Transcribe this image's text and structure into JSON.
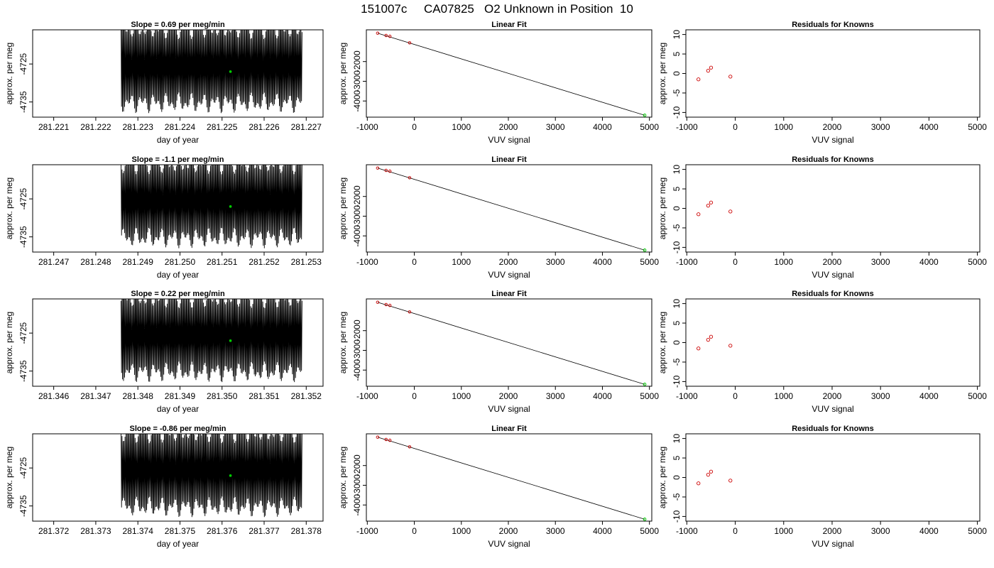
{
  "page_title": "151007c     CA07825   O2 Unknown in Position  10",
  "colors": {
    "trace": "#000000",
    "known_points": "#cc0000",
    "unknown_point": "#00cc00",
    "axes": "#000000",
    "background": "#ffffff"
  },
  "chart_data": [
    {
      "type": "line",
      "title": "Slope =  0.69  per meg/min",
      "xlabel": "day of year",
      "ylabel": "approx. per meg",
      "x_ticks": [
        "281.221",
        "281.222",
        "281.223",
        "281.224",
        "281.225",
        "281.226",
        "281.227"
      ],
      "y_ticks": [
        "-4725",
        "-4735"
      ],
      "xlim": [
        281.2205,
        281.2274
      ],
      "ylim": [
        -4739,
        -4716
      ],
      "x_tick_values": [
        281.221,
        281.222,
        281.223,
        281.224,
        281.225,
        281.226,
        281.227
      ],
      "y_tick_values": [
        -4725,
        -4735
      ],
      "trace_x_range": [
        281.2226,
        281.2269
      ],
      "trace_y_range": [
        -4738,
        -4713
      ],
      "highlight_point": {
        "x": 281.2252,
        "y": -4727
      }
    },
    {
      "type": "scatter",
      "title": "Linear Fit",
      "xlabel": "VUV signal",
      "ylabel": "approx. per meg",
      "x_ticks": [
        "-1000",
        "0",
        "1000",
        "2000",
        "3000",
        "4000",
        "5000"
      ],
      "y_ticks": [
        "-2000",
        "-3000",
        "-4000"
      ],
      "xlim": [
        -1020,
        5050
      ],
      "ylim": [
        -4820,
        -390
      ],
      "x_tick_values": [
        -1000,
        0,
        1000,
        2000,
        3000,
        4000,
        5000
      ],
      "y_tick_values": [
        -2000,
        -3000,
        -4000
      ],
      "fit_line": {
        "x": [
          -780,
          4900
        ],
        "y": [
          -560,
          -4725
        ]
      },
      "known_points": {
        "x": [
          -780,
          -600,
          -520,
          -100
        ],
        "y": [
          -560,
          -680,
          -720,
          -1050
        ]
      },
      "unknown_point": {
        "x": 4900,
        "y": -4725
      }
    },
    {
      "type": "scatter",
      "title": "Residuals for Knowns",
      "xlabel": "VUV signal",
      "ylabel": "approx. per meg",
      "x_ticks": [
        "-1000",
        "0",
        "1000",
        "2000",
        "3000",
        "4000",
        "5000"
      ],
      "y_ticks": [
        "10",
        "5",
        "0",
        "-5",
        "-10"
      ],
      "xlim": [
        -1020,
        5050
      ],
      "ylim": [
        -11.2,
        11.2
      ],
      "x_tick_values": [
        -1000,
        0,
        1000,
        2000,
        3000,
        4000,
        5000
      ],
      "y_tick_values": [
        10,
        5,
        0,
        -5,
        -10
      ],
      "points": {
        "x": [
          -760,
          -560,
          -500,
          -100
        ],
        "y": [
          -1.5,
          0.7,
          1.5,
          -0.8
        ]
      }
    },
    {
      "type": "line",
      "title": "Slope =  -1.1  per meg/min",
      "xlabel": "day of year",
      "ylabel": "approx. per meg",
      "x_ticks": [
        "281.247",
        "281.248",
        "281.249",
        "281.250",
        "281.251",
        "281.252",
        "281.253"
      ],
      "y_ticks": [
        "-4725",
        "-4735"
      ],
      "xlim": [
        281.2465,
        281.2534
      ],
      "ylim": [
        -4739,
        -4716
      ],
      "x_tick_values": [
        281.247,
        281.248,
        281.249,
        281.25,
        281.251,
        281.252,
        281.253
      ],
      "y_tick_values": [
        -4725,
        -4735
      ],
      "trace_x_range": [
        281.2486,
        281.2529
      ],
      "trace_y_range": [
        -4738,
        -4713
      ],
      "highlight_point": {
        "x": 281.2512,
        "y": -4727
      }
    },
    {
      "type": "scatter",
      "title": "Linear Fit",
      "xlabel": "VUV signal",
      "ylabel": "approx. per meg",
      "x_ticks": [
        "-1000",
        "0",
        "1000",
        "2000",
        "3000",
        "4000",
        "5000"
      ],
      "y_ticks": [
        "-2000",
        "-3000",
        "-4000"
      ],
      "xlim": [
        -1020,
        5050
      ],
      "ylim": [
        -4820,
        -390
      ],
      "x_tick_values": [
        -1000,
        0,
        1000,
        2000,
        3000,
        4000,
        5000
      ],
      "y_tick_values": [
        -2000,
        -3000,
        -4000
      ],
      "fit_line": {
        "x": [
          -780,
          4900
        ],
        "y": [
          -560,
          -4725
        ]
      },
      "known_points": {
        "x": [
          -780,
          -600,
          -520,
          -100
        ],
        "y": [
          -560,
          -680,
          -720,
          -1050
        ]
      },
      "unknown_point": {
        "x": 4900,
        "y": -4725
      }
    },
    {
      "type": "scatter",
      "title": "Residuals for Knowns",
      "xlabel": "VUV signal",
      "ylabel": "approx. per meg",
      "x_ticks": [
        "-1000",
        "0",
        "1000",
        "2000",
        "3000",
        "4000",
        "5000"
      ],
      "y_ticks": [
        "10",
        "5",
        "0",
        "-5",
        "-10"
      ],
      "xlim": [
        -1020,
        5050
      ],
      "ylim": [
        -11.2,
        11.2
      ],
      "x_tick_values": [
        -1000,
        0,
        1000,
        2000,
        3000,
        4000,
        5000
      ],
      "y_tick_values": [
        10,
        5,
        0,
        -5,
        -10
      ],
      "points": {
        "x": [
          -760,
          -560,
          -500,
          -100
        ],
        "y": [
          -1.5,
          0.7,
          1.5,
          -0.8
        ]
      }
    },
    {
      "type": "line",
      "title": "Slope =  0.22  per meg/min",
      "xlabel": "day of year",
      "ylabel": "approx. per meg",
      "x_ticks": [
        "281.346",
        "281.347",
        "281.348",
        "281.349",
        "281.350",
        "281.351",
        "281.352"
      ],
      "y_ticks": [
        "-4725",
        "-4735"
      ],
      "xlim": [
        281.3455,
        281.3524
      ],
      "ylim": [
        -4739,
        -4716
      ],
      "x_tick_values": [
        281.346,
        281.347,
        281.348,
        281.349,
        281.35,
        281.351,
        281.352
      ],
      "y_tick_values": [
        -4725,
        -4735
      ],
      "trace_x_range": [
        281.3476,
        281.3519
      ],
      "trace_y_range": [
        -4738,
        -4713
      ],
      "highlight_point": {
        "x": 281.3502,
        "y": -4727
      }
    },
    {
      "type": "scatter",
      "title": "Linear Fit",
      "xlabel": "VUV signal",
      "ylabel": "approx. per meg",
      "x_ticks": [
        "-1000",
        "0",
        "1000",
        "2000",
        "3000",
        "4000",
        "5000"
      ],
      "y_ticks": [
        "-2000",
        "-3000",
        "-4000"
      ],
      "xlim": [
        -1020,
        5050
      ],
      "ylim": [
        -4820,
        -390
      ],
      "x_tick_values": [
        -1000,
        0,
        1000,
        2000,
        3000,
        4000,
        5000
      ],
      "y_tick_values": [
        -2000,
        -3000,
        -4000
      ],
      "fit_line": {
        "x": [
          -780,
          4900
        ],
        "y": [
          -560,
          -4725
        ]
      },
      "known_points": {
        "x": [
          -780,
          -600,
          -520,
          -100
        ],
        "y": [
          -560,
          -680,
          -720,
          -1050
        ]
      },
      "unknown_point": {
        "x": 4900,
        "y": -4725
      }
    },
    {
      "type": "scatter",
      "title": "Residuals for Knowns",
      "xlabel": "VUV signal",
      "ylabel": "approx. per meg",
      "x_ticks": [
        "-1000",
        "0",
        "1000",
        "2000",
        "3000",
        "4000",
        "5000"
      ],
      "y_ticks": [
        "10",
        "5",
        "0",
        "-5",
        "-10"
      ],
      "xlim": [
        -1020,
        5050
      ],
      "ylim": [
        -11.2,
        11.2
      ],
      "x_tick_values": [
        -1000,
        0,
        1000,
        2000,
        3000,
        4000,
        5000
      ],
      "y_tick_values": [
        10,
        5,
        0,
        -5,
        -10
      ],
      "points": {
        "x": [
          -760,
          -560,
          -500,
          -100
        ],
        "y": [
          -1.5,
          0.7,
          1.5,
          -0.8
        ]
      }
    },
    {
      "type": "line",
      "title": "Slope =  -0.86  per meg/min",
      "xlabel": "day of year",
      "ylabel": "approx. per meg",
      "x_ticks": [
        "281.372",
        "281.373",
        "281.374",
        "281.375",
        "281.376",
        "281.377",
        "281.378"
      ],
      "y_ticks": [
        "-4725",
        "-4735"
      ],
      "xlim": [
        281.3715,
        281.3784
      ],
      "ylim": [
        -4739,
        -4716
      ],
      "x_tick_values": [
        281.372,
        281.373,
        281.374,
        281.375,
        281.376,
        281.377,
        281.378
      ],
      "y_tick_values": [
        -4725,
        -4735
      ],
      "trace_x_range": [
        281.3736,
        281.3779
      ],
      "trace_y_range": [
        -4738,
        -4713
      ],
      "highlight_point": {
        "x": 281.3762,
        "y": -4727
      }
    },
    {
      "type": "scatter",
      "title": "Linear Fit",
      "xlabel": "VUV signal",
      "ylabel": "approx. per meg",
      "x_ticks": [
        "-1000",
        "0",
        "1000",
        "2000",
        "3000",
        "4000",
        "5000"
      ],
      "y_ticks": [
        "-2000",
        "-3000",
        "-4000"
      ],
      "xlim": [
        -1020,
        5050
      ],
      "ylim": [
        -4820,
        -390
      ],
      "x_tick_values": [
        -1000,
        0,
        1000,
        2000,
        3000,
        4000,
        5000
      ],
      "y_tick_values": [
        -2000,
        -3000,
        -4000
      ],
      "fit_line": {
        "x": [
          -780,
          4900
        ],
        "y": [
          -560,
          -4725
        ]
      },
      "known_points": {
        "x": [
          -780,
          -600,
          -520,
          -100
        ],
        "y": [
          -560,
          -680,
          -720,
          -1050
        ]
      },
      "unknown_point": {
        "x": 4900,
        "y": -4725
      }
    },
    {
      "type": "scatter",
      "title": "Residuals for Knowns",
      "xlabel": "VUV signal",
      "ylabel": "approx. per meg",
      "x_ticks": [
        "-1000",
        "0",
        "1000",
        "2000",
        "3000",
        "4000",
        "5000"
      ],
      "y_ticks": [
        "10",
        "5",
        "0",
        "-5",
        "-10"
      ],
      "xlim": [
        -1020,
        5050
      ],
      "ylim": [
        -11.2,
        11.2
      ],
      "x_tick_values": [
        -1000,
        0,
        1000,
        2000,
        3000,
        4000,
        5000
      ],
      "y_tick_values": [
        10,
        5,
        0,
        -5,
        -10
      ],
      "points": {
        "x": [
          -760,
          -560,
          -500,
          -100
        ],
        "y": [
          -1.5,
          0.7,
          1.5,
          -0.8
        ]
      }
    }
  ]
}
